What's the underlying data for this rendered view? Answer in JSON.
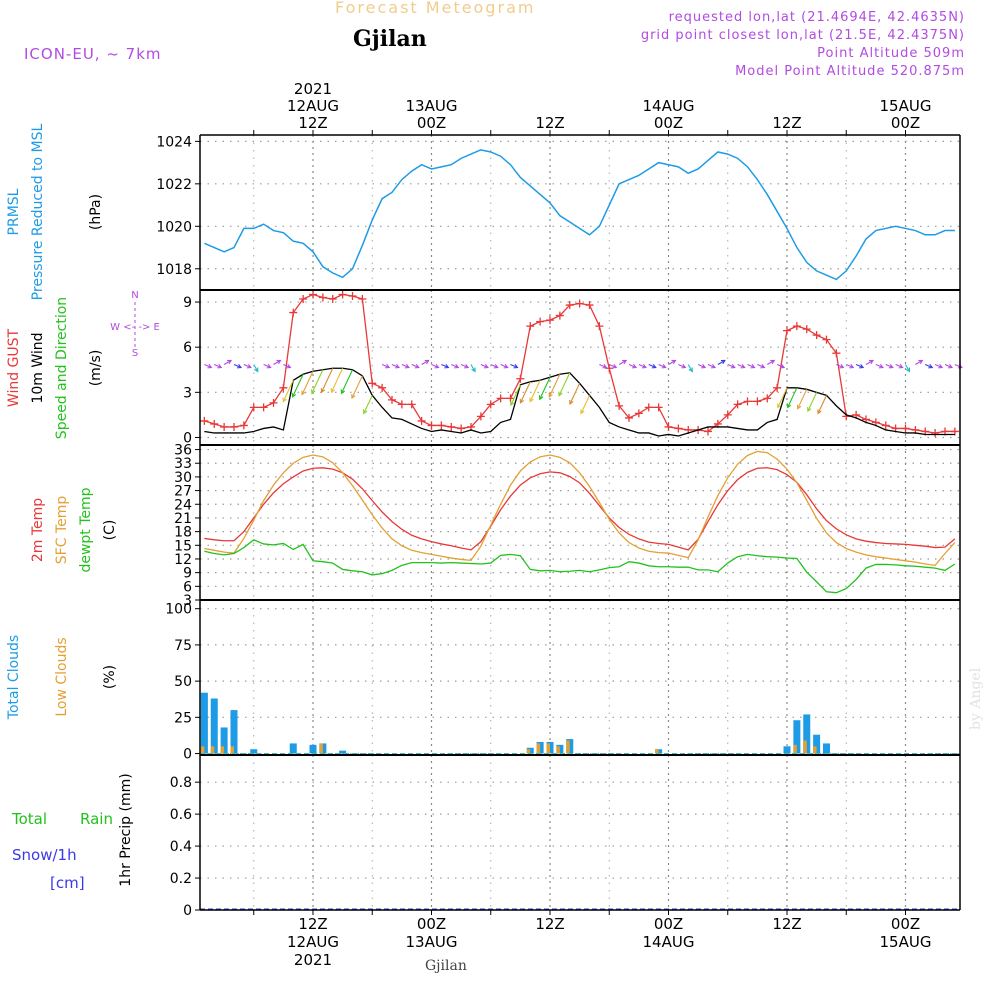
{
  "header": {
    "title": "Forecast Meteogram",
    "location": "Gjilan",
    "model": "ICON-EU, ~ 7km",
    "requested": "requested lon,lat (21.4694E, 42.4635N)",
    "gridpoint": "grid point closest lon,lat (21.5E, 42.4375N)",
    "altitude": "Point Altitude 509m",
    "model_altitude": "Model Point Altitude 520.875m",
    "footer_location": "Gjilan",
    "watermark": "by Angel"
  },
  "colors": {
    "pressure": "#1e9be6",
    "gust": "#e83838",
    "wind": "#000000",
    "barb": "#22c21d",
    "temp2m": "#e83838",
    "sfc": "#e3a034",
    "dewpt": "#22c21d",
    "total_clouds": "#1e9be6",
    "low_clouds": "#e3a034",
    "rain": "#22c21d",
    "snow": "#3a3ae8",
    "purple": "#b24be0",
    "header_title": "#f0cd8c"
  },
  "time_axis": {
    "top_labels": [
      {
        "lines": [
          "2021",
          "12AUG",
          "12Z"
        ],
        "h": 0
      },
      {
        "lines": [
          "13AUG",
          "00Z"
        ],
        "h": 12
      },
      {
        "lines": [
          "12Z"
        ],
        "h": 24
      },
      {
        "lines": [
          "14AUG",
          "00Z"
        ],
        "h": 36
      },
      {
        "lines": [
          "12Z"
        ],
        "h": 48
      },
      {
        "lines": [
          "15AUG",
          "00Z"
        ],
        "h": 60
      }
    ],
    "bottom_labels": [
      {
        "lines": [
          "12Z",
          "12AUG",
          "2021"
        ],
        "h": 0
      },
      {
        "lines": [
          "00Z",
          "13AUG"
        ],
        "h": 12
      },
      {
        "lines": [
          "12Z"
        ],
        "h": 24
      },
      {
        "lines": [
          "00Z",
          "14AUG"
        ],
        "h": 36
      },
      {
        "lines": [
          "12Z"
        ],
        "h": 48
      },
      {
        "lines": [
          "00Z",
          "15AUG"
        ],
        "h": 60
      }
    ],
    "start_h": -11,
    "end_h": 65
  },
  "chart_data": [
    {
      "type": "line",
      "panel": "pressure",
      "ylabel": [
        "PRMSL",
        "Pressure Reduced to MSL",
        "(hPa)"
      ],
      "ylim": [
        1017,
        1024.3
      ],
      "yticks": [
        1018,
        1020,
        1022,
        1024
      ],
      "x_hours": [
        -11,
        -10,
        -9,
        -8,
        -7,
        -6,
        -5,
        -4,
        -3,
        -2,
        -1,
        0,
        1,
        2,
        3,
        4,
        5,
        6,
        7,
        8,
        9,
        10,
        11,
        12,
        13,
        14,
        15,
        16,
        17,
        18,
        19,
        20,
        21,
        22,
        23,
        24,
        25,
        26,
        27,
        28,
        29,
        30,
        31,
        32,
        33,
        34,
        35,
        36,
        37,
        38,
        39,
        40,
        41,
        42,
        43,
        44,
        45,
        46,
        47,
        48,
        49,
        50,
        51,
        52,
        53,
        54,
        55,
        56,
        57,
        58,
        59,
        60,
        61,
        62,
        63,
        64,
        65
      ],
      "series": [
        {
          "values": [
            1019.2,
            1019.0,
            1018.8,
            1019.0,
            1019.9,
            1019.9,
            1020.1,
            1019.8,
            1019.7,
            1019.3,
            1019.2,
            1018.8,
            1018.1,
            1017.8,
            1017.6,
            1018.0,
            1019.1,
            1020.3,
            1021.3,
            1021.6,
            1022.2,
            1022.6,
            1022.9,
            1022.7,
            1022.8,
            1022.9,
            1023.2,
            1023.4,
            1023.6,
            1023.5,
            1023.3,
            1022.9,
            1022.3,
            1021.9,
            1021.5,
            1021.1,
            1020.5,
            1020.2,
            1019.9,
            1019.6,
            1020.0,
            1021.0,
            1022.0,
            1022.2,
            1022.4,
            1022.7,
            1023.0,
            1022.9,
            1022.8,
            1022.5,
            1022.7,
            1023.1,
            1023.5,
            1023.4,
            1023.2,
            1022.8,
            1022.2,
            1021.5,
            1020.7,
            1019.9,
            1019.0,
            1018.3,
            1017.9,
            1017.7,
            1017.5,
            1017.9,
            1018.6,
            1019.4,
            1019.8,
            1019.9,
            1020.0,
            1019.9,
            1019.8,
            1019.6,
            1019.6,
            1019.8,
            1019.8
          ]
        }
      ]
    },
    {
      "type": "line",
      "panel": "wind",
      "ylabel": [
        "Wind GUST",
        "10m Wind",
        "Speed and Direction",
        "(m/s)"
      ],
      "compass": "N / W <- -> E / S",
      "ylim": [
        -0.5,
        9.8
      ],
      "yticks": [
        0,
        3,
        6,
        9
      ],
      "x_hours": [
        -11,
        -10,
        -9,
        -8,
        -7,
        -6,
        -5,
        -4,
        -3,
        -2,
        -1,
        0,
        1,
        2,
        3,
        4,
        5,
        6,
        7,
        8,
        9,
        10,
        11,
        12,
        13,
        14,
        15,
        16,
        17,
        18,
        19,
        20,
        21,
        22,
        23,
        24,
        25,
        26,
        27,
        28,
        29,
        30,
        31,
        32,
        33,
        34,
        35,
        36,
        37,
        38,
        39,
        40,
        41,
        42,
        43,
        44,
        45,
        46,
        47,
        48,
        49,
        50,
        51,
        52,
        53,
        54,
        55,
        56,
        57,
        58,
        59,
        60,
        61,
        62,
        63,
        64,
        65
      ],
      "series": [
        {
          "name": "Wind GUST",
          "values": [
            1.1,
            0.9,
            0.7,
            0.7,
            0.8,
            2.0,
            2.0,
            2.3,
            3.3,
            8.3,
            9.2,
            9.5,
            9.3,
            9.2,
            9.5,
            9.4,
            9.2,
            3.6,
            3.3,
            2.5,
            2.2,
            2.2,
            1.1,
            0.8,
            0.8,
            0.7,
            0.6,
            0.7,
            1.4,
            2.2,
            2.6,
            2.6,
            3.9,
            7.4,
            7.7,
            7.8,
            8.1,
            8.8,
            8.9,
            8.8,
            7.4,
            4.6,
            2.1,
            1.3,
            1.6,
            2.0,
            2.0,
            0.7,
            0.6,
            0.5,
            0.5,
            0.4,
            0.9,
            1.5,
            2.2,
            2.4,
            2.4,
            2.6,
            3.3,
            7.1,
            7.4,
            7.2,
            6.8,
            6.5,
            5.6,
            1.4,
            1.5,
            1.2,
            1.0,
            0.8,
            0.6,
            0.6,
            0.5,
            0.4,
            0.3,
            0.4,
            0.4
          ]
        },
        {
          "name": "10m Wind",
          "values": [
            0.4,
            0.3,
            0.3,
            0.3,
            0.3,
            0.4,
            0.6,
            0.7,
            0.5,
            3.8,
            4.2,
            4.4,
            4.5,
            4.6,
            4.6,
            4.5,
            4.1,
            2.8,
            2.0,
            1.3,
            1.2,
            0.9,
            0.6,
            0.4,
            0.5,
            0.4,
            0.3,
            0.5,
            0.3,
            0.4,
            1.0,
            1.2,
            3.5,
            3.7,
            3.8,
            4.0,
            4.2,
            4.3,
            3.6,
            2.8,
            2.0,
            1.0,
            0.7,
            0.5,
            0.3,
            0.3,
            0.1,
            0.2,
            0.1,
            0.3,
            0.5,
            0.7,
            0.7,
            0.7,
            0.6,
            0.5,
            0.5,
            1.0,
            1.2,
            3.3,
            3.3,
            3.2,
            3.0,
            2.8,
            2.1,
            1.5,
            1.3,
            1.0,
            0.8,
            0.5,
            0.4,
            0.3,
            0.3,
            0.2,
            0.2,
            0.2,
            0.2
          ]
        }
      ]
    },
    {
      "type": "line",
      "panel": "temperature",
      "ylabel": [
        "2m Temp",
        "SFC Temp",
        "dewpt Temp",
        "(C)"
      ],
      "ylim": [
        3,
        37
      ],
      "yticks": [
        3,
        6,
        9,
        12,
        15,
        18,
        21,
        24,
        27,
        30,
        33,
        36
      ],
      "x_hours": [
        -11,
        -10,
        -9,
        -8,
        -7,
        -6,
        -5,
        -4,
        -3,
        -2,
        -1,
        0,
        1,
        2,
        3,
        4,
        5,
        6,
        7,
        8,
        9,
        10,
        11,
        12,
        13,
        14,
        15,
        16,
        17,
        18,
        19,
        20,
        21,
        22,
        23,
        24,
        25,
        26,
        27,
        28,
        29,
        30,
        31,
        32,
        33,
        34,
        35,
        36,
        37,
        38,
        39,
        40,
        41,
        42,
        43,
        44,
        45,
        46,
        47,
        48,
        49,
        50,
        51,
        52,
        53,
        54,
        55,
        56,
        57,
        58,
        59,
        60,
        61,
        62,
        63,
        64,
        65
      ],
      "series": [
        {
          "name": "2m Temp",
          "values": [
            16.5,
            16.2,
            16.0,
            16.0,
            18.0,
            21.0,
            24.0,
            26.5,
            28.5,
            30.0,
            31.3,
            31.9,
            32.0,
            31.7,
            30.9,
            29.5,
            27.4,
            24.8,
            22.3,
            20.2,
            18.5,
            17.2,
            16.4,
            15.8,
            15.3,
            14.9,
            14.4,
            14.0,
            15.8,
            19.2,
            22.8,
            25.8,
            28.2,
            29.8,
            30.7,
            31.1,
            30.9,
            30.1,
            28.7,
            26.4,
            23.7,
            21.0,
            18.9,
            17.4,
            16.4,
            15.7,
            15.4,
            15.2,
            14.6,
            14.0,
            16.3,
            20.2,
            23.9,
            27.0,
            29.4,
            31.0,
            31.9,
            32.0,
            31.6,
            30.5,
            28.8,
            26.1,
            23.0,
            20.4,
            18.6,
            17.3,
            16.4,
            15.9,
            15.6,
            15.4,
            15.3,
            15.2,
            15.0,
            14.8,
            14.5,
            14.6,
            16.4
          ]
        },
        {
          "name": "SFC Temp",
          "values": [
            14.3,
            13.9,
            13.5,
            13.3,
            16.5,
            20.5,
            24.8,
            28.2,
            30.9,
            33.0,
            34.3,
            34.8,
            34.4,
            33.1,
            30.9,
            28.1,
            24.9,
            21.7,
            18.8,
            16.4,
            14.9,
            13.9,
            13.4,
            13.0,
            12.6,
            12.2,
            11.9,
            11.7,
            14.8,
            19.4,
            24.0,
            28.2,
            31.3,
            33.3,
            34.4,
            34.8,
            34.3,
            33.1,
            30.9,
            27.9,
            24.4,
            20.7,
            17.7,
            15.6,
            14.4,
            13.7,
            13.4,
            13.3,
            12.8,
            12.3,
            16.2,
            21.2,
            25.9,
            29.8,
            32.8,
            34.7,
            35.6,
            35.3,
            33.9,
            31.7,
            28.7,
            24.9,
            20.9,
            17.7,
            15.6,
            14.3,
            13.5,
            12.9,
            12.5,
            12.2,
            11.9,
            11.6,
            11.3,
            10.9,
            10.6,
            13.2,
            15.6
          ]
        },
        {
          "name": "dewpt Temp",
          "values": [
            13.7,
            13.2,
            12.9,
            13.2,
            14.5,
            16.2,
            15.3,
            15.1,
            15.4,
            14.1,
            15.2,
            11.6,
            11.4,
            11.1,
            9.7,
            9.4,
            9.2,
            8.5,
            8.8,
            9.5,
            10.6,
            11.2,
            11.2,
            11.2,
            11.1,
            11.2,
            11.1,
            11.0,
            10.9,
            11.1,
            12.8,
            13.0,
            12.7,
            9.7,
            9.4,
            9.5,
            9.2,
            9.3,
            9.5,
            9.2,
            9.6,
            10.1,
            10.3,
            11.4,
            11.1,
            10.5,
            10.3,
            10.3,
            10.2,
            10.2,
            9.6,
            9.6,
            9.2,
            11.1,
            12.5,
            13.0,
            12.7,
            12.5,
            12.4,
            12.2,
            12.1,
            9.1,
            7.0,
            4.8,
            4.6,
            5.5,
            7.5,
            10.0,
            10.8,
            10.8,
            10.7,
            10.5,
            10.4,
            10.2,
            10.0,
            9.5,
            10.9
          ]
        }
      ]
    },
    {
      "type": "bar",
      "panel": "clouds",
      "ylabel": [
        "Total Clouds",
        "Low Clouds",
        "(%)"
      ],
      "ylim": [
        -1,
        106
      ],
      "yticks": [
        0,
        25,
        50,
        75,
        100
      ],
      "x_hours": [
        -11,
        -10,
        -9,
        -8,
        -7,
        -6,
        -5,
        -4,
        -3,
        -2,
        -1,
        0,
        1,
        2,
        3,
        4,
        5,
        6,
        7,
        8,
        9,
        10,
        11,
        12,
        13,
        14,
        15,
        16,
        17,
        18,
        19,
        20,
        21,
        22,
        23,
        24,
        25,
        26,
        27,
        28,
        29,
        30,
        31,
        32,
        33,
        34,
        35,
        36,
        37,
        38,
        39,
        40,
        41,
        42,
        43,
        44,
        45,
        46,
        47,
        48,
        49,
        50,
        51,
        52,
        53,
        54,
        55,
        56,
        57,
        58,
        59,
        60,
        61,
        62,
        63,
        64,
        65
      ],
      "series": [
        {
          "name": "Total Clouds",
          "values": [
            42,
            38,
            18,
            30,
            0,
            3,
            0,
            0,
            0,
            7,
            0,
            6,
            7,
            0,
            2,
            0,
            0,
            0,
            0,
            0,
            0,
            0,
            0,
            0,
            0,
            0,
            0,
            0,
            0,
            0,
            0,
            0,
            0,
            4,
            8,
            8,
            6,
            10,
            0,
            0,
            0,
            0,
            0,
            0,
            0,
            0,
            3,
            0,
            0,
            0,
            0,
            0,
            0,
            0,
            0,
            0,
            0,
            0,
            0,
            5,
            23,
            27,
            13,
            7,
            0,
            0,
            0,
            0,
            0,
            0,
            0,
            0,
            0,
            0,
            0,
            0,
            0
          ]
        },
        {
          "name": "Low Clouds",
          "values": [
            5,
            5,
            5,
            5,
            0,
            0,
            0,
            0,
            0,
            0,
            0,
            0,
            7,
            0,
            0,
            0,
            0,
            0,
            0,
            0,
            0,
            0,
            0,
            0,
            0,
            0,
            0,
            0,
            0,
            0,
            0,
            0,
            0,
            3,
            7,
            7,
            5,
            9,
            0,
            0,
            0,
            0,
            0,
            0,
            0,
            0,
            3,
            0,
            0,
            0,
            0,
            0,
            0,
            0,
            0,
            0,
            0,
            0,
            0,
            0,
            6,
            9,
            5,
            0,
            0,
            0,
            0,
            0,
            0,
            0,
            0,
            0,
            0,
            0,
            0,
            0,
            0
          ]
        }
      ]
    },
    {
      "type": "bar",
      "panel": "precip",
      "ylabel": [
        "1hr Precip (mm)"
      ],
      "legend": [
        "Total",
        "Rain",
        "Snow/1h",
        "[cm]"
      ],
      "ylim": [
        0,
        0.97
      ],
      "yticks": [
        0,
        0.2,
        0.4,
        0.6,
        0.8
      ],
      "ytick_labels": [
        "0",
        "0.2",
        "0.4",
        "0.6",
        "0.8"
      ],
      "series": [
        {
          "name": "Total",
          "values": []
        }
      ]
    }
  ]
}
